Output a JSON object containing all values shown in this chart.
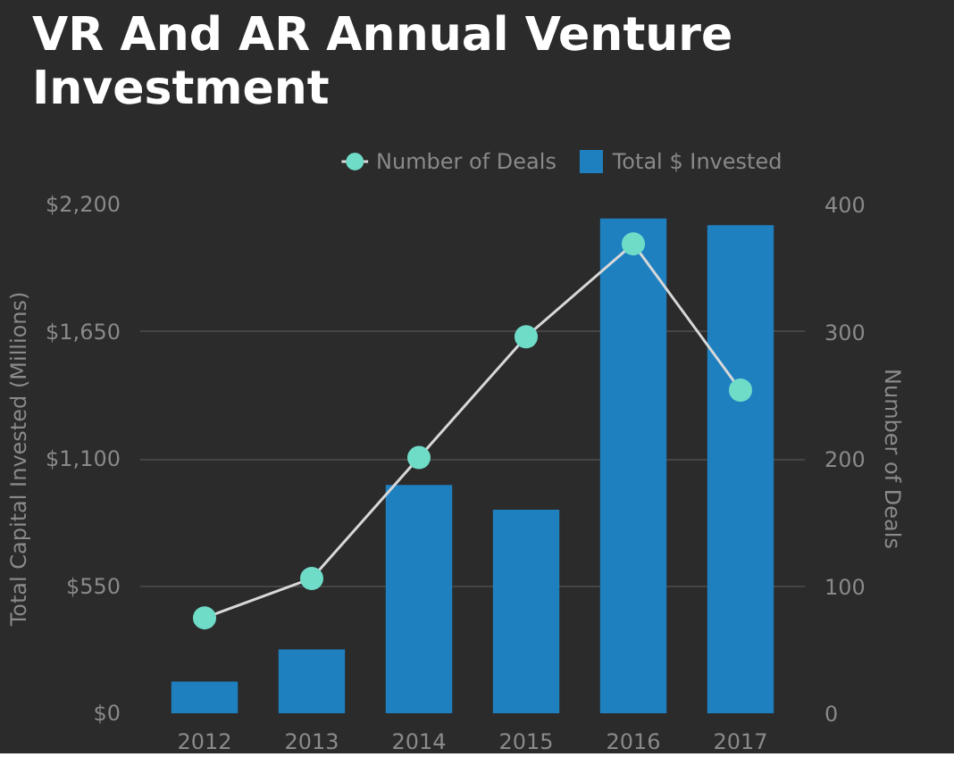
{
  "chart_data": {
    "type": "bar",
    "title": "VR And AR Annual Venture Investment",
    "categories": [
      "2012",
      "2013",
      "2014",
      "2015",
      "2016",
      "2017"
    ],
    "series": [
      {
        "name": "Number of Deals",
        "type": "line",
        "axis": "y2",
        "color": "#6fdcc8",
        "marker": "circle",
        "values": [
          75,
          106,
          201,
          296,
          369,
          254
        ]
      },
      {
        "name": "Total $ Invested",
        "color": "#1f80c0",
        "values": [
          137,
          276,
          987,
          880,
          2139,
          2110
        ]
      }
    ],
    "ylabel": "Total Capital Invested (Millions)",
    "y2label": "Number of Deals",
    "ylim": [
      0,
      2200
    ],
    "yticks": [
      {
        "value": 0,
        "label": "$0"
      },
      {
        "value": 550,
        "label": "$550"
      },
      {
        "value": 1100,
        "label": "$1,100"
      },
      {
        "value": 1650,
        "label": "$1,650"
      },
      {
        "value": 2200,
        "label": "$2,200"
      }
    ],
    "y2lim": [
      0,
      400
    ],
    "y2ticks": [
      0,
      100,
      200,
      300,
      400
    ],
    "grid": "y",
    "legend": "top right"
  }
}
